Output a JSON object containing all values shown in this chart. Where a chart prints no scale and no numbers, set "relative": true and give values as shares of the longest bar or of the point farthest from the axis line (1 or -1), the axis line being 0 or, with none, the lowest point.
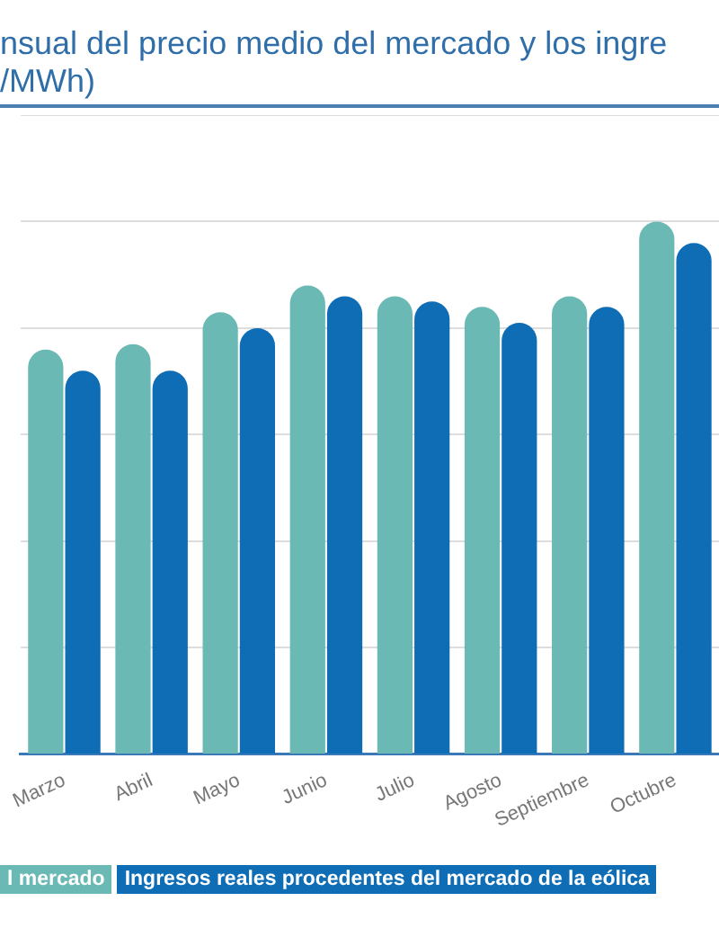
{
  "chart_data": {
    "type": "bar",
    "title": "nsual del precio medio del mercado y los ingre",
    "subtitle": "/MWh)",
    "categories": [
      "Marzo",
      "Abril",
      "Mayo",
      "Junio",
      "Julio",
      "Agosto",
      "Septiembre",
      "Octubre"
    ],
    "relative": true,
    "grid": "y",
    "legend": "bottom left",
    "series": [
      {
        "name": "l mercado",
        "color": "#6bb9b4",
        "values": [
          0.76,
          0.77,
          0.83,
          0.88,
          0.86,
          0.84,
          0.86,
          1
        ]
      },
      {
        "name": "Ingresos reales procedentes del mercado de la eólica",
        "color": "#0f6db5",
        "values": [
          0.72,
          0.72,
          0.8,
          0.86,
          0.85,
          0.81,
          0.84,
          0.96
        ]
      }
    ]
  }
}
